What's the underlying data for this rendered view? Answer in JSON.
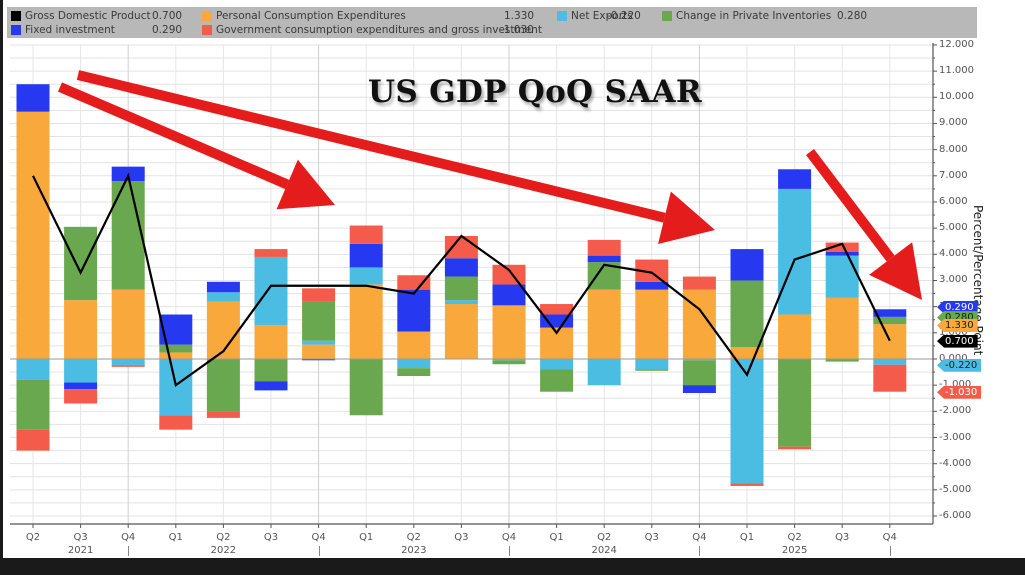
{
  "title": "US GDP QoQ SAAR",
  "legend": [
    {
      "name": "Gross Domestic Product",
      "value": "0.700",
      "color": "#000000"
    },
    {
      "name": "Personal Consumption Expenditures",
      "value": "1.330",
      "color": "#f9a83c"
    },
    {
      "name": "Net Exports",
      "value": "-0.220",
      "color": "#4bbde3"
    },
    {
      "name": "Change in Private Inventories",
      "value": "0.280",
      "color": "#6aa84f"
    },
    {
      "name": "Fixed investment",
      "value": "0.290",
      "color": "#2639f0"
    },
    {
      "name": "Government consumption expenditures and gross investment",
      "value": "-1.030",
      "color": "#f45b4a"
    }
  ],
  "axis": {
    "ylabel": "Percent/Percentage Point",
    "yticks": [
      "12.000",
      "11.000",
      "10.000",
      "9.000",
      "8.000",
      "7.000",
      "6.000",
      "5.000",
      "4.000",
      "3.000",
      "2.000",
      "1.000",
      "0.000",
      "-1.000",
      "-2.000",
      "-3.000",
      "-4.000",
      "-5.000",
      "-6.000"
    ],
    "quarter_labels": [
      "Q2",
      "Q3",
      "Q4",
      "Q1",
      "Q2",
      "Q3",
      "Q4",
      "Q1",
      "Q2",
      "Q3",
      "Q4",
      "Q1",
      "Q2",
      "Q3",
      "Q4",
      "Q1",
      "Q2",
      "Q3",
      "Q4"
    ],
    "year_labels": [
      {
        "label": "2021",
        "index": 1
      },
      {
        "label": "2022",
        "index": 4
      },
      {
        "label": "2023",
        "index": 8
      },
      {
        "label": "2024",
        "index": 12
      },
      {
        "label": "2025",
        "index": 16
      }
    ]
  },
  "last_value_tags": [
    {
      "value": "0.290",
      "color": "#2639f0",
      "text_color": "#ffffff",
      "y": 2.0
    },
    {
      "value": "0.280",
      "color": "#6aa84f",
      "text_color": "#1a1a1a",
      "y": 1.6
    },
    {
      "value": "1.330",
      "color": "#f9a83c",
      "text_color": "#1a1a1a",
      "y": 1.3
    },
    {
      "value": "0.700",
      "color": "#000000",
      "text_color": "#ffffff",
      "y": 0.7
    },
    {
      "value": "-0.220",
      "color": "#4bbde3",
      "text_color": "#1a1a1a",
      "y": -0.22
    },
    {
      "value": "-1.030",
      "color": "#f45b4a",
      "text_color": "#ffffff",
      "y": -1.25
    }
  ],
  "annotations": {
    "arrows": [
      {
        "from": [
          60,
          87
        ],
        "to": [
          335,
          205
        ]
      },
      {
        "from": [
          78,
          75
        ],
        "to": [
          715,
          230
        ]
      },
      {
        "from": [
          810,
          152
        ],
        "to": [
          922,
          300
        ]
      }
    ],
    "arrow_color": "#e51c1c"
  },
  "chart_data": {
    "type": "bar",
    "stacked": true,
    "title": "US GDP QoQ SAAR",
    "xlabel": "",
    "ylabel": "Percent/Percentage Point",
    "ylim": [
      -6,
      12
    ],
    "grid": true,
    "legend_position": "top",
    "categories": [
      "2021 Q2",
      "2021 Q3",
      "2021 Q4",
      "2022 Q1",
      "2022 Q2",
      "2022 Q3",
      "2022 Q4",
      "2023 Q1",
      "2023 Q2",
      "2023 Q3",
      "2023 Q4",
      "2024 Q1",
      "2024 Q2",
      "2024 Q3",
      "2024 Q4",
      "2025 Q1",
      "2025 Q2",
      "2025 Q3",
      "2025 Q4"
    ],
    "series": [
      {
        "name": "Personal Consumption Expenditures",
        "type": "bar",
        "color": "#f9a83c",
        "values": [
          9.45,
          2.25,
          2.65,
          0.25,
          2.2,
          1.3,
          0.55,
          2.85,
          1.05,
          2.1,
          2.05,
          1.2,
          2.65,
          2.65,
          2.65,
          0.45,
          1.7,
          2.35,
          1.33
        ]
      },
      {
        "name": "Net Exports",
        "type": "bar",
        "color": "#4bbde3",
        "values": [
          -0.8,
          -0.9,
          -0.25,
          -2.15,
          0.35,
          2.6,
          0.15,
          0.65,
          -0.35,
          0.15,
          -0.05,
          -0.4,
          -1.0,
          -0.4,
          -0.05,
          -4.75,
          4.8,
          1.6,
          -0.22
        ]
      },
      {
        "name": "Change in Private Inventories",
        "type": "bar",
        "color": "#6aa84f",
        "values": [
          -1.9,
          2.8,
          4.15,
          0.3,
          -2.0,
          -0.85,
          1.5,
          -2.15,
          -0.3,
          0.9,
          -0.15,
          -0.85,
          1.05,
          -0.05,
          -0.95,
          2.55,
          -3.35,
          -0.1,
          0.28
        ]
      },
      {
        "name": "Fixed investment",
        "type": "bar",
        "color": "#2639f0",
        "values": [
          1.05,
          -0.25,
          0.55,
          1.15,
          0.4,
          -0.35,
          -0.05,
          0.9,
          1.6,
          0.7,
          0.8,
          0.5,
          0.25,
          0.3,
          -0.3,
          1.2,
          0.75,
          0.15,
          0.29
        ]
      },
      {
        "name": "Government consumption expenditures and gross investment",
        "type": "bar",
        "color": "#f45b4a",
        "values": [
          -0.8,
          -0.55,
          -0.05,
          -0.55,
          -0.25,
          0.3,
          0.5,
          0.7,
          0.55,
          0.85,
          0.75,
          0.4,
          0.6,
          0.85,
          0.5,
          -0.1,
          -0.1,
          0.35,
          -1.03
        ]
      },
      {
        "name": "Gross Domestic Product",
        "type": "line",
        "color": "#000000",
        "values": [
          7.0,
          3.3,
          7.0,
          -1.0,
          0.3,
          2.8,
          2.8,
          2.8,
          2.5,
          4.7,
          3.4,
          1.0,
          3.6,
          3.3,
          1.9,
          -0.6,
          3.8,
          4.4,
          0.7
        ]
      }
    ]
  }
}
